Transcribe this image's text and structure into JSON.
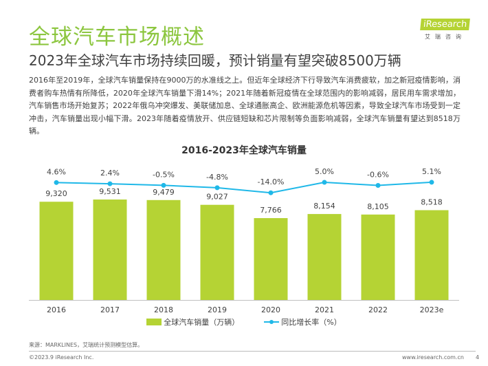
{
  "header": {
    "title": "全球汽车市场概述",
    "subtitle": "2023年全球汽车市场持续回暖，预计销量有望突破8500万辆",
    "logo_text": "iResearch",
    "logo_sub": "艾瑞咨询"
  },
  "body_text": "2016年至2019年，全球汽车销量保持在9000万的水准线之上。但近年全球经济下行导致汽车消费疲软，加之新冠疫情影响，消费者购车热情有所降低，2020年全球汽车销量下滑14%；2021年随着新冠疫情在全球范围内的影响减弱，居民用车需求增加，汽车销售市场开始复苏；2022年俄乌冲突爆发、美联储加息、全球通胀高企、欧洲能源危机等因素，导致全球汽车市场受到一定冲击，汽车销量出现小幅下滑。2023年随着疫情放开、供应链短缺和芯片限制等负面影响减弱，全球汽车销量有望达到8518万辆。",
  "chart_data": {
    "type": "bar",
    "title": "2016-2023年全球汽车销量",
    "categories": [
      "2016",
      "2017",
      "2018",
      "2019",
      "2020",
      "2021",
      "2022",
      "2023e"
    ],
    "series": [
      {
        "name": "全球汽车销量（万辆）",
        "type": "bar",
        "values": [
          9320,
          9531,
          9479,
          9027,
          7766,
          8154,
          8105,
          8518
        ],
        "labels": [
          "9,320",
          "9,531",
          "9,479",
          "9,027",
          "7,766",
          "8,154",
          "8,105",
          "8,518"
        ],
        "color": "#b5d334"
      },
      {
        "name": "同比增长率（%）",
        "type": "line",
        "values": [
          4.6,
          2.4,
          -0.5,
          -4.8,
          -14.0,
          5.0,
          -0.6,
          5.1
        ],
        "labels": [
          "4.6%",
          "2.4%",
          "-0.5%",
          "-4.8%",
          "-14.0%",
          "5.0%",
          "-0.6%",
          "5.1%"
        ],
        "color": "#1fb8e8"
      }
    ],
    "ylim": [
      0,
      11750
    ],
    "legend": "bottom",
    "grid": false
  },
  "footer": {
    "source": "来源：MARKLINES，艾瑞统计预测模型估算。",
    "copyright": "©2023.9 iResearch Inc.",
    "site": "www.iresearch.com.cn",
    "page": "4"
  }
}
